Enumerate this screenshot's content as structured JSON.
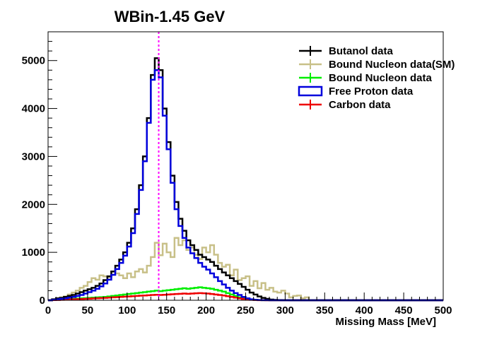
{
  "chart_data": {
    "type": "line",
    "title": "WBin-1.45 GeV",
    "xlabel": "Missing Mass [MeV]",
    "ylabel": "",
    "xlim": [
      0,
      500
    ],
    "ylim": [
      0,
      5600
    ],
    "xticks": [
      "0",
      "50",
      "100",
      "150",
      "200",
      "250",
      "300",
      "350",
      "400",
      "450",
      "500"
    ],
    "yticks": [
      "0",
      "1000",
      "2000",
      "3000",
      "4000",
      "5000"
    ],
    "bin_width": 5,
    "marker_line": {
      "x": 140,
      "color": "#ff00ff"
    },
    "legend_position": "top-right",
    "grid": false,
    "series": [
      {
        "name": "Butanol data",
        "color": "#000000",
        "values": [
          0,
          20,
          40,
          50,
          70,
          90,
          110,
          140,
          170,
          200,
          230,
          260,
          300,
          350,
          420,
          500,
          600,
          720,
          850,
          1000,
          1200,
          1500,
          1900,
          2400,
          3000,
          3800,
          4700,
          5050,
          4800,
          4000,
          3300,
          2600,
          2050,
          1700,
          1450,
          1250,
          1150,
          1050,
          950,
          900,
          850,
          800,
          720,
          650,
          580,
          520,
          460,
          400,
          340,
          280,
          220,
          160,
          120,
          80,
          50,
          30,
          15,
          8,
          4,
          2,
          1,
          0,
          0,
          0,
          0,
          0,
          0,
          0,
          0,
          0,
          0,
          0,
          0,
          0,
          0,
          0,
          0,
          0,
          0,
          0,
          0,
          0,
          0,
          0,
          0,
          0,
          0,
          0,
          0,
          0,
          0,
          0,
          0,
          0,
          0,
          0,
          0,
          0,
          0,
          0
        ]
      },
      {
        "name": "Bound Nucleon data(SM)",
        "color": "#c8c088",
        "values": [
          0,
          20,
          30,
          60,
          80,
          120,
          160,
          200,
          260,
          300,
          380,
          460,
          430,
          520,
          500,
          480,
          600,
          560,
          520,
          460,
          560,
          480,
          600,
          650,
          580,
          720,
          900,
          1200,
          940,
          1180,
          1000,
          900,
          1300,
          1150,
          1250,
          1050,
          1100,
          950,
          860,
          1100,
          1000,
          1150,
          950,
          780,
          700,
          740,
          520,
          640,
          420,
          460,
          500,
          300,
          400,
          250,
          360,
          220,
          260,
          180,
          160,
          200,
          140,
          60,
          90,
          100,
          40,
          60,
          0,
          0,
          0,
          0,
          0,
          0,
          0,
          0,
          0,
          0,
          0,
          0,
          0,
          0,
          0,
          0,
          0,
          0,
          0,
          0,
          0,
          0,
          0,
          0,
          0,
          0,
          0,
          0,
          0,
          0,
          0,
          0,
          0,
          0
        ]
      },
      {
        "name": "Bound Nucleon data",
        "color": "#00ee00",
        "values": [
          0,
          5,
          10,
          15,
          20,
          25,
          30,
          35,
          40,
          45,
          50,
          55,
          60,
          65,
          70,
          80,
          90,
          100,
          110,
          120,
          130,
          140,
          150,
          160,
          170,
          180,
          190,
          200,
          190,
          200,
          210,
          220,
          230,
          240,
          250,
          240,
          250,
          260,
          270,
          260,
          250,
          240,
          220,
          200,
          180,
          150,
          120,
          90,
          60,
          40,
          25,
          15,
          8,
          4,
          2,
          1,
          0,
          0,
          0,
          0,
          0,
          0,
          0,
          0,
          0,
          0,
          0,
          0,
          0,
          0,
          0,
          0,
          0,
          0,
          0,
          0,
          0,
          0,
          0,
          0,
          0,
          0,
          0,
          0,
          0,
          0,
          0,
          0,
          0,
          0,
          0,
          0,
          0,
          0,
          0,
          0,
          0,
          0,
          0,
          0
        ]
      },
      {
        "name": "Free Proton data",
        "color": "#0000dd",
        "values": [
          0,
          10,
          20,
          30,
          40,
          55,
          70,
          90,
          110,
          140,
          170,
          200,
          240,
          290,
          350,
          430,
          530,
          650,
          780,
          930,
          1120,
          1400,
          1800,
          2300,
          2900,
          3700,
          4600,
          4800,
          4650,
          3850,
          3150,
          2450,
          1900,
          1550,
          1300,
          1100,
          980,
          880,
          780,
          700,
          640,
          560,
          480,
          400,
          330,
          260,
          200,
          150,
          110,
          70,
          40,
          20,
          10,
          5,
          2,
          1,
          0,
          0,
          0,
          0,
          0,
          0,
          0,
          0,
          0,
          0,
          0,
          0,
          0,
          0,
          0,
          0,
          0,
          0,
          0,
          0,
          0,
          0,
          0,
          0,
          0,
          0,
          0,
          0,
          0,
          0,
          0,
          0,
          0,
          0,
          0,
          0,
          0,
          0,
          0,
          0,
          0,
          0,
          0,
          0
        ]
      },
      {
        "name": "Carbon data",
        "color": "#ee0000",
        "values": [
          0,
          3,
          6,
          9,
          12,
          15,
          18,
          22,
          26,
          30,
          34,
          38,
          42,
          46,
          50,
          55,
          60,
          65,
          70,
          75,
          80,
          85,
          90,
          95,
          100,
          105,
          110,
          115,
          110,
          115,
          120,
          125,
          130,
          135,
          140,
          135,
          140,
          145,
          150,
          145,
          140,
          130,
          120,
          110,
          100,
          85,
          70,
          55,
          40,
          28,
          18,
          10,
          5,
          2,
          1,
          0,
          0,
          0,
          0,
          0,
          0,
          0,
          0,
          0,
          0,
          0,
          0,
          0,
          0,
          0,
          0,
          0,
          0,
          0,
          0,
          0,
          0,
          0,
          0,
          0,
          0,
          0,
          0,
          0,
          0,
          0,
          0,
          0,
          0,
          0,
          0,
          0,
          0,
          0,
          0,
          0,
          0,
          0,
          0,
          0
        ]
      }
    ]
  }
}
